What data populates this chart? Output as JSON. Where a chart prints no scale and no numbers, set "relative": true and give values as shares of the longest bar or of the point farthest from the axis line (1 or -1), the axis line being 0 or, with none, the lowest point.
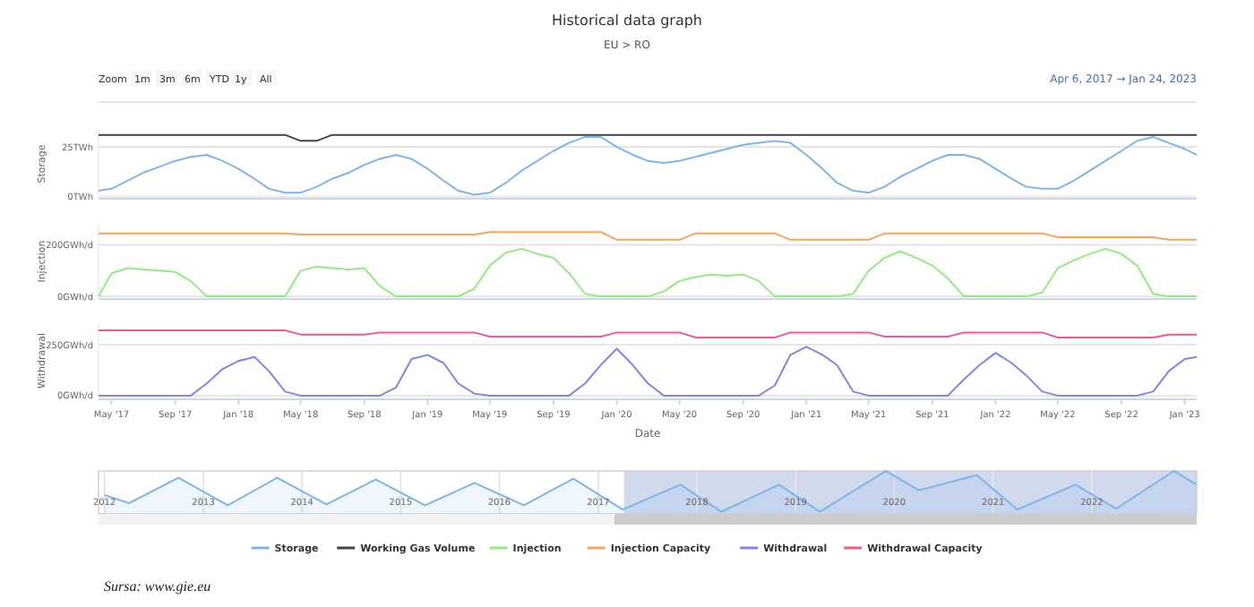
{
  "chart_data": [
    {
      "type": "line",
      "title": "Historical data graph",
      "subtitle": "EU > RO",
      "ylabel": "Storage",
      "annotations": [
        "Zoom",
        "1m",
        "3m",
        "6m",
        "YTD",
        "1y",
        "All",
        "Apr 6, 2017 → Jan 24, 2023",
        "Sursa: www.gie.eu"
      ],
      "x": [
        "2017-04-06",
        "2017-05",
        "2017-06",
        "2017-07",
        "2017-08",
        "2017-09",
        "2017-10",
        "2017-11",
        "2017-12",
        "2018-01",
        "2018-02",
        "2018-03",
        "2018-04",
        "2018-05",
        "2018-06",
        "2018-07",
        "2018-08",
        "2018-09",
        "2018-10",
        "2018-11",
        "2018-12",
        "2019-01",
        "2019-02",
        "2019-03",
        "2019-04",
        "2019-05",
        "2019-06",
        "2019-07",
        "2019-08",
        "2019-09",
        "2019-10",
        "2019-11",
        "2019-12",
        "2020-01",
        "2020-02",
        "2020-03",
        "2020-04",
        "2020-05",
        "2020-06",
        "2020-07",
        "2020-08",
        "2020-09",
        "2020-10",
        "2020-11",
        "2020-12",
        "2021-01",
        "2021-02",
        "2021-03",
        "2021-04",
        "2021-05",
        "2021-06",
        "2021-07",
        "2021-08",
        "2021-09",
        "2021-10",
        "2021-11",
        "2021-12",
        "2022-01",
        "2022-02",
        "2022-03",
        "2022-04",
        "2022-05",
        "2022-06",
        "2022-07",
        "2022-08",
        "2022-09",
        "2022-10",
        "2022-11",
        "2022-12",
        "2023-01",
        "2023-01-24"
      ],
      "series": [
        {
          "name": "Storage",
          "color": "#7cb5ec",
          "values": [
            3,
            4,
            8,
            12,
            15,
            18,
            20,
            21,
            18,
            14,
            9,
            4,
            2,
            2,
            5,
            9,
            12,
            16,
            19,
            21,
            19,
            14,
            8,
            3,
            1,
            2,
            7,
            13,
            18,
            23,
            27,
            30,
            30,
            25,
            21,
            18,
            17,
            18,
            20,
            22,
            24,
            26,
            27,
            28,
            27,
            21,
            14,
            7,
            3,
            2,
            5,
            10,
            14,
            18,
            21,
            21,
            19,
            14,
            9,
            5,
            4,
            4,
            8,
            13,
            18,
            23,
            28,
            30,
            27,
            24,
            21
          ]
        },
        {
          "name": "Working Gas Volume",
          "color": "#434348",
          "values": [
            31,
            31,
            31,
            31,
            31,
            31,
            31,
            31,
            31,
            31,
            31,
            31,
            31,
            28,
            28,
            31,
            31,
            31,
            31,
            31,
            31,
            31,
            31,
            31,
            31,
            31,
            31,
            31,
            31,
            31,
            31,
            31,
            31,
            31,
            31,
            31,
            31,
            31,
            31,
            31,
            31,
            31,
            31,
            31,
            31,
            31,
            31,
            31,
            31,
            31,
            31,
            31,
            31,
            31,
            31,
            31,
            31,
            31,
            31,
            31,
            31,
            31,
            31,
            31,
            31,
            31,
            31,
            31,
            31,
            31,
            31
          ]
        }
      ],
      "xlim": [
        "2017-04-06",
        "2023-01-24"
      ],
      "ylim": [
        -1,
        34
      ],
      "yticks": [
        {
          "value": 0,
          "label": "0TWh"
        },
        {
          "value": 25,
          "label": "25TWh"
        }
      ],
      "grid": "y",
      "tick_labels": "y",
      "legend": "bottom"
    },
    {
      "type": "line",
      "ylabel": "Injection",
      "x": [
        "2017-04-06",
        "2017-05",
        "2017-06",
        "2017-07",
        "2017-08",
        "2017-09",
        "2017-10",
        "2017-11",
        "2017-12",
        "2018-01",
        "2018-02",
        "2018-03",
        "2018-04",
        "2018-05",
        "2018-06",
        "2018-07",
        "2018-08",
        "2018-09",
        "2018-10",
        "2018-11",
        "2018-12",
        "2019-01",
        "2019-02",
        "2019-03",
        "2019-04",
        "2019-05",
        "2019-06",
        "2019-07",
        "2019-08",
        "2019-09",
        "2019-10",
        "2019-11",
        "2019-12",
        "2020-01",
        "2020-02",
        "2020-03",
        "2020-04",
        "2020-05",
        "2020-06",
        "2020-07",
        "2020-08",
        "2020-09",
        "2020-10",
        "2020-11",
        "2020-12",
        "2021-01",
        "2021-02",
        "2021-03",
        "2021-04",
        "2021-05",
        "2021-06",
        "2021-07",
        "2021-08",
        "2021-09",
        "2021-10",
        "2021-11",
        "2021-12",
        "2022-01",
        "2022-02",
        "2022-03",
        "2022-04",
        "2022-05",
        "2022-06",
        "2022-07",
        "2022-08",
        "2022-09",
        "2022-10",
        "2022-11",
        "2022-12",
        "2023-01",
        "2023-01-24"
      ],
      "series": [
        {
          "name": "Injection",
          "color": "#90ed7d",
          "values": [
            0,
            90,
            110,
            105,
            100,
            95,
            60,
            0,
            0,
            0,
            0,
            0,
            0,
            100,
            115,
            110,
            105,
            110,
            40,
            0,
            0,
            0,
            0,
            0,
            30,
            120,
            170,
            185,
            165,
            150,
            90,
            10,
            0,
            0,
            0,
            0,
            20,
            60,
            75,
            85,
            80,
            85,
            60,
            0,
            0,
            0,
            0,
            0,
            10,
            100,
            150,
            175,
            150,
            120,
            70,
            0,
            0,
            0,
            0,
            0,
            15,
            110,
            140,
            165,
            185,
            165,
            120,
            10,
            0,
            0,
            0
          ]
        },
        {
          "name": "Injection Capacity",
          "color": "#f7a35c",
          "values": [
            245,
            245,
            245,
            245,
            245,
            245,
            245,
            245,
            245,
            245,
            245,
            245,
            245,
            240,
            240,
            240,
            240,
            240,
            240,
            240,
            240,
            240,
            240,
            240,
            240,
            250,
            250,
            250,
            250,
            250,
            250,
            250,
            250,
            220,
            220,
            220,
            220,
            220,
            245,
            245,
            245,
            245,
            245,
            245,
            220,
            220,
            220,
            220,
            220,
            220,
            245,
            245,
            245,
            245,
            245,
            245,
            245,
            245,
            245,
            245,
            245,
            230,
            230,
            230,
            230,
            230,
            230,
            230,
            220,
            220,
            220
          ]
        }
      ],
      "xlim": [
        "2017-04-06",
        "2023-01-24"
      ],
      "ylim": [
        -10,
        282
      ],
      "yticks": [
        {
          "value": 0,
          "label": "0GWh/d"
        },
        {
          "value": 200,
          "label": "200GWh/d"
        }
      ],
      "grid": "y",
      "tick_labels": "y",
      "legend": "bottom"
    },
    {
      "type": "line",
      "ylabel": "Withdrawal",
      "xlabel": "Date",
      "x": [
        "2017-04-06",
        "2017-05",
        "2017-06",
        "2017-07",
        "2017-08",
        "2017-09",
        "2017-10",
        "2017-11",
        "2017-12",
        "2018-01",
        "2018-02",
        "2018-03",
        "2018-04",
        "2018-05",
        "2018-06",
        "2018-07",
        "2018-08",
        "2018-09",
        "2018-10",
        "2018-11",
        "2018-12",
        "2019-01",
        "2019-02",
        "2019-03",
        "2019-04",
        "2019-05",
        "2019-06",
        "2019-07",
        "2019-08",
        "2019-09",
        "2019-10",
        "2019-11",
        "2019-12",
        "2020-01",
        "2020-02",
        "2020-03",
        "2020-04",
        "2020-05",
        "2020-06",
        "2020-07",
        "2020-08",
        "2020-09",
        "2020-10",
        "2020-11",
        "2020-12",
        "2021-01",
        "2021-02",
        "2021-03",
        "2021-04",
        "2021-05",
        "2021-06",
        "2021-07",
        "2021-08",
        "2021-09",
        "2021-10",
        "2021-11",
        "2021-12",
        "2022-01",
        "2022-02",
        "2022-03",
        "2022-04",
        "2022-05",
        "2022-06",
        "2022-07",
        "2022-08",
        "2022-09",
        "2022-10",
        "2022-11",
        "2022-12",
        "2023-01",
        "2023-01-24"
      ],
      "series": [
        {
          "name": "Withdrawal",
          "color": "#8085e9",
          "values": [
            0,
            0,
            0,
            0,
            0,
            0,
            0,
            60,
            130,
            170,
            190,
            120,
            20,
            0,
            0,
            0,
            0,
            0,
            0,
            40,
            180,
            200,
            160,
            60,
            10,
            0,
            0,
            0,
            0,
            0,
            0,
            60,
            150,
            230,
            150,
            60,
            0,
            0,
            0,
            0,
            0,
            0,
            0,
            50,
            200,
            240,
            200,
            150,
            20,
            0,
            0,
            0,
            0,
            0,
            0,
            80,
            150,
            210,
            160,
            100,
            20,
            0,
            0,
            0,
            0,
            0,
            0,
            20,
            120,
            180,
            190
          ]
        },
        {
          "name": "Withdrawal Capacity",
          "color": "#f15c80",
          "values": [
            320,
            320,
            320,
            320,
            320,
            320,
            320,
            320,
            320,
            320,
            320,
            320,
            320,
            300,
            300,
            300,
            300,
            300,
            310,
            310,
            310,
            310,
            310,
            310,
            310,
            290,
            290,
            290,
            290,
            290,
            290,
            290,
            290,
            310,
            310,
            310,
            310,
            310,
            285,
            285,
            285,
            285,
            285,
            285,
            310,
            310,
            310,
            310,
            310,
            310,
            290,
            290,
            290,
            290,
            290,
            310,
            310,
            310,
            310,
            310,
            310,
            285,
            285,
            285,
            285,
            285,
            285,
            285,
            300,
            300,
            300
          ]
        }
      ],
      "xlim": [
        "2017-04-06",
        "2023-01-24"
      ],
      "ylim": [
        -18,
        360
      ],
      "yticks": [
        {
          "value": 0,
          "label": "0GWh/d"
        },
        {
          "value": 250,
          "label": "250GWh/d"
        }
      ],
      "xticks": [
        {
          "value": "2017-05",
          "label": "May '17"
        },
        {
          "value": "2017-09",
          "label": "Sep '17"
        },
        {
          "value": "2018-01",
          "label": "Jan '18"
        },
        {
          "value": "2018-05",
          "label": "May '18"
        },
        {
          "value": "2018-09",
          "label": "Sep '18"
        },
        {
          "value": "2019-01",
          "label": "Jan '19"
        },
        {
          "value": "2019-05",
          "label": "May '19"
        },
        {
          "value": "2019-09",
          "label": "Sep '19"
        },
        {
          "value": "2020-01",
          "label": "Jan '20"
        },
        {
          "value": "2020-05",
          "label": "May '20"
        },
        {
          "value": "2020-09",
          "label": "Sep '20"
        },
        {
          "value": "2021-01",
          "label": "Jan '21"
        },
        {
          "value": "2021-05",
          "label": "May '21"
        },
        {
          "value": "2021-09",
          "label": "Sep '21"
        },
        {
          "value": "2022-01",
          "label": "Jan '22"
        },
        {
          "value": "2022-05",
          "label": "May '22"
        },
        {
          "value": "2022-09",
          "label": "Sep '22"
        },
        {
          "value": "2023-01",
          "label": "Jan '23"
        }
      ],
      "grid": "y",
      "legend": "bottom"
    },
    {
      "type": "area",
      "relative": true,
      "x": [
        "2012-01",
        "2012-04",
        "2012-10",
        "2013-04",
        "2013-10",
        "2014-04",
        "2014-10",
        "2015-04",
        "2015-10",
        "2016-04",
        "2016-10",
        "2017-04",
        "2017-11",
        "2018-04",
        "2018-11",
        "2019-04",
        "2019-12",
        "2020-04",
        "2020-11",
        "2021-04",
        "2021-11",
        "2022-04",
        "2022-11",
        "2023-01-24"
      ],
      "series": [
        {
          "color": "#7cb5ec",
          "values": [
            0.44,
            0.25,
            0.84,
            0.2,
            0.84,
            0.22,
            0.8,
            0.2,
            0.72,
            0.2,
            0.82,
            0.1,
            0.68,
            0.05,
            0.68,
            0.05,
            1,
            0.55,
            0.9,
            0.1,
            0.68,
            0.12,
            1,
            0.68
          ]
        }
      ],
      "grid": "x",
      "xlim": [
        "2011-12-10",
        "2023-01-24"
      ],
      "xticks": [
        {
          "value": "2012",
          "label": "2012"
        },
        {
          "value": "2013",
          "label": "2013"
        },
        {
          "value": "2014",
          "label": "2014"
        },
        {
          "value": "2015",
          "label": "2015"
        },
        {
          "value": "2016",
          "label": "2016"
        },
        {
          "value": "2017",
          "label": "2017"
        },
        {
          "value": "2018",
          "label": "2018"
        },
        {
          "value": "2019",
          "label": "2019"
        },
        {
          "value": "2020",
          "label": "2020"
        },
        {
          "value": "2021",
          "label": "2021"
        },
        {
          "value": "2022",
          "label": "2022"
        }
      ],
      "bands": [
        {
          "axis": "x",
          "from": "2017-04-06",
          "to": "2023-01-24",
          "color": "#c5cfe9"
        }
      ],
      "tick_labels": "x"
    }
  ]
}
